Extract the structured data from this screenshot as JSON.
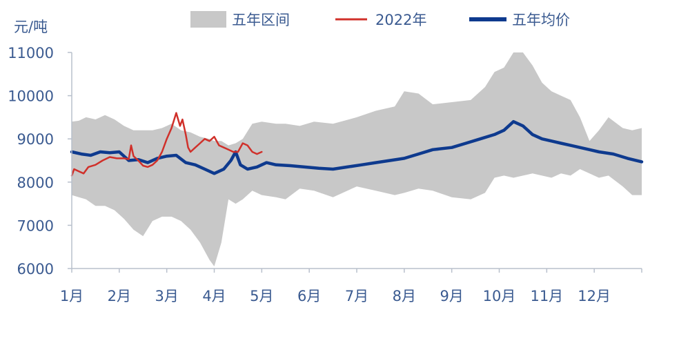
{
  "chart_data": {
    "type": "area",
    "ylabel": "元/吨",
    "ylim": [
      6000,
      11000
    ],
    "yticks": [
      6000,
      7000,
      8000,
      9000,
      10000,
      11000
    ],
    "xlim": [
      1,
      13
    ],
    "categories": [
      "1月",
      "2月",
      "3月",
      "4月",
      "5月",
      "6月",
      "7月",
      "8月",
      "9月",
      "10月",
      "11月",
      "12月"
    ],
    "grid": false,
    "legend_position": "top",
    "colors": {
      "band": "#c8c8c8",
      "current": "#d0302a",
      "average": "#0e3a8e",
      "axis": "#b8c0cc",
      "text": "#3a5a90"
    },
    "series": [
      {
        "name": "五年区间",
        "kind": "band",
        "x": [
          1.0,
          1.15,
          1.3,
          1.5,
          1.7,
          1.9,
          2.1,
          2.3,
          2.5,
          2.7,
          2.9,
          3.1,
          3.3,
          3.5,
          3.7,
          3.9,
          4.0,
          4.15,
          4.3,
          4.45,
          4.6,
          4.8,
          5.0,
          5.3,
          5.5,
          5.8,
          6.1,
          6.5,
          7.0,
          7.4,
          7.8,
          8.0,
          8.3,
          8.6,
          9.0,
          9.4,
          9.7,
          9.9,
          10.1,
          10.3,
          10.5,
          10.7,
          10.9,
          11.1,
          11.3,
          11.5,
          11.7,
          11.9,
          12.1,
          12.3,
          12.6,
          12.8,
          13.0
        ],
        "upper": [
          9400,
          9420,
          9500,
          9450,
          9550,
          9450,
          9300,
          9200,
          9200,
          9200,
          9250,
          9350,
          9200,
          9150,
          9050,
          9000,
          8950,
          8950,
          8850,
          8900,
          9000,
          9350,
          9400,
          9350,
          9350,
          9300,
          9400,
          9350,
          9500,
          9650,
          9750,
          10100,
          10050,
          9800,
          9850,
          9900,
          10200,
          10550,
          10650,
          11000,
          11000,
          10700,
          10300,
          10100,
          10000,
          9900,
          9500,
          8950,
          9200,
          9500,
          9250,
          9200,
          9250
        ],
        "lower": [
          7700,
          7650,
          7600,
          7450,
          7450,
          7350,
          7150,
          6900,
          6750,
          7100,
          7200,
          7200,
          7100,
          6900,
          6600,
          6200,
          6050,
          6600,
          7600,
          7500,
          7600,
          7800,
          7700,
          7650,
          7600,
          7850,
          7800,
          7650,
          7900,
          7800,
          7700,
          7750,
          7850,
          7800,
          7650,
          7600,
          7750,
          8100,
          8150,
          8100,
          8150,
          8200,
          8150,
          8100,
          8200,
          8150,
          8300,
          8200,
          8100,
          8150,
          7900,
          7700,
          7700
        ]
      },
      {
        "name": "2022年",
        "kind": "line",
        "x": [
          1.0,
          1.05,
          1.15,
          1.25,
          1.35,
          1.5,
          1.65,
          1.8,
          1.95,
          2.1,
          2.2,
          2.25,
          2.3,
          2.4,
          2.5,
          2.6,
          2.7,
          2.8,
          2.9,
          3.0,
          3.1,
          3.2,
          3.28,
          3.33,
          3.4,
          3.45,
          3.5,
          3.6,
          3.7,
          3.8,
          3.9,
          4.0,
          4.1,
          4.2,
          4.3,
          4.4,
          4.5,
          4.6,
          4.7,
          4.8,
          4.9,
          5.0
        ],
        "y": [
          8150,
          8300,
          8250,
          8200,
          8350,
          8400,
          8500,
          8580,
          8550,
          8550,
          8530,
          8850,
          8600,
          8500,
          8380,
          8350,
          8400,
          8500,
          8700,
          9000,
          9250,
          9600,
          9300,
          9450,
          9100,
          8800,
          8700,
          8800,
          8900,
          9000,
          8950,
          9050,
          8850,
          8800,
          8750,
          8700,
          8700,
          8900,
          8850,
          8700,
          8650,
          8700
        ]
      },
      {
        "name": "五年均价",
        "kind": "line",
        "x": [
          1.0,
          1.2,
          1.4,
          1.6,
          1.8,
          2.0,
          2.2,
          2.4,
          2.6,
          2.8,
          3.0,
          3.2,
          3.4,
          3.6,
          3.8,
          4.0,
          4.2,
          4.35,
          4.45,
          4.55,
          4.7,
          4.9,
          5.1,
          5.3,
          5.6,
          5.9,
          6.2,
          6.5,
          6.8,
          7.1,
          7.4,
          7.7,
          8.0,
          8.3,
          8.6,
          9.0,
          9.3,
          9.6,
          9.9,
          10.1,
          10.3,
          10.5,
          10.7,
          10.9,
          11.1,
          11.3,
          11.5,
          11.7,
          11.9,
          12.1,
          12.4,
          12.7,
          13.0
        ],
        "y": [
          8700,
          8650,
          8620,
          8700,
          8680,
          8700,
          8500,
          8520,
          8450,
          8550,
          8600,
          8620,
          8450,
          8400,
          8300,
          8200,
          8300,
          8500,
          8700,
          8400,
          8300,
          8350,
          8450,
          8400,
          8380,
          8350,
          8320,
          8300,
          8350,
          8400,
          8450,
          8500,
          8550,
          8650,
          8750,
          8800,
          8900,
          9000,
          9100,
          9200,
          9400,
          9300,
          9100,
          9000,
          8950,
          8900,
          8850,
          8800,
          8750,
          8700,
          8650,
          8550,
          8470
        ]
      }
    ]
  }
}
